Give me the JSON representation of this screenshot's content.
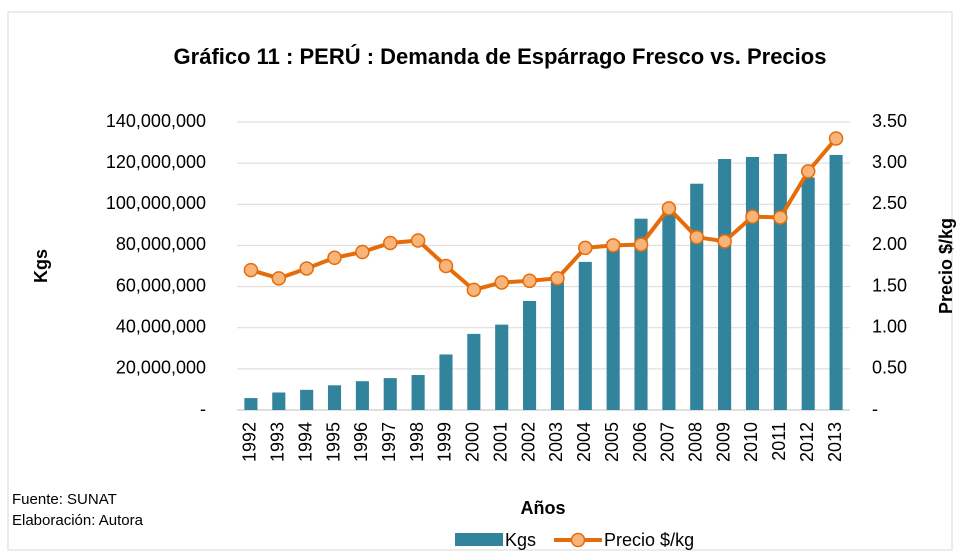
{
  "chart_data": {
    "type": "bar-line",
    "title": "Gráfico 11 : PERÚ : Demanda de Espárrago Fresco vs. Precios",
    "x_label": "Años",
    "y_label": "Kgs",
    "y2_label": "Precio $/kg",
    "footnotes": [
      "Fuente: SUNAT",
      "Elaboración: Autora"
    ],
    "categories": [
      "1992",
      "1993",
      "1994",
      "1995",
      "1996",
      "1997",
      "1998",
      "1999",
      "2000",
      "2001",
      "2002",
      "2003",
      "2004",
      "2005",
      "2006",
      "2007",
      "2008",
      "2009",
      "2010",
      "2011",
      "2012",
      "2013"
    ],
    "series": [
      {
        "name": "Kgs",
        "type": "bar",
        "color": "#31849b",
        "values": [
          5800000,
          8500000,
          9800000,
          12000000,
          14000000,
          15500000,
          17000000,
          27000000,
          37000000,
          41500000,
          53000000,
          62000000,
          72000000,
          82000000,
          93000000,
          97000000,
          110000000,
          122000000,
          123000000,
          124500000,
          113000000,
          124000000
        ]
      },
      {
        "name": "Precio $/kg",
        "type": "line",
        "axis": "y2",
        "color": "#e46c0a",
        "marker_color": "#f9b47a",
        "values": [
          1.7,
          1.6,
          1.72,
          1.85,
          1.92,
          2.03,
          2.06,
          1.75,
          1.46,
          1.55,
          1.57,
          1.6,
          1.97,
          2.0,
          2.01,
          2.45,
          2.1,
          2.05,
          2.35,
          2.34,
          2.9,
          3.3
        ]
      }
    ],
    "ylim": [
      0,
      140000000
    ],
    "yticks": [
      {
        "value": 0,
        "label": "-"
      },
      {
        "value": 20000000,
        "label": "20,000,000"
      },
      {
        "value": 40000000,
        "label": "40,000,000"
      },
      {
        "value": 60000000,
        "label": "60,000,000"
      },
      {
        "value": 80000000,
        "label": "80,000,000"
      },
      {
        "value": 100000000,
        "label": "100,000,000"
      },
      {
        "value": 120000000,
        "label": "120,000,000"
      },
      {
        "value": 140000000,
        "label": "140,000,000"
      }
    ],
    "y2lim": [
      0,
      3.5
    ],
    "y2ticks": [
      {
        "value": 0,
        "label": "-"
      },
      {
        "value": 0.5,
        "label": "0.50"
      },
      {
        "value": 1,
        "label": "1.00"
      },
      {
        "value": 1.5,
        "label": "1.50"
      },
      {
        "value": 2,
        "label": "2.00"
      },
      {
        "value": 2.5,
        "label": "2.50"
      },
      {
        "value": 3,
        "label": "3.00"
      },
      {
        "value": 3.5,
        "label": "3.50"
      }
    ],
    "grid": true,
    "legend": "bottom"
  }
}
